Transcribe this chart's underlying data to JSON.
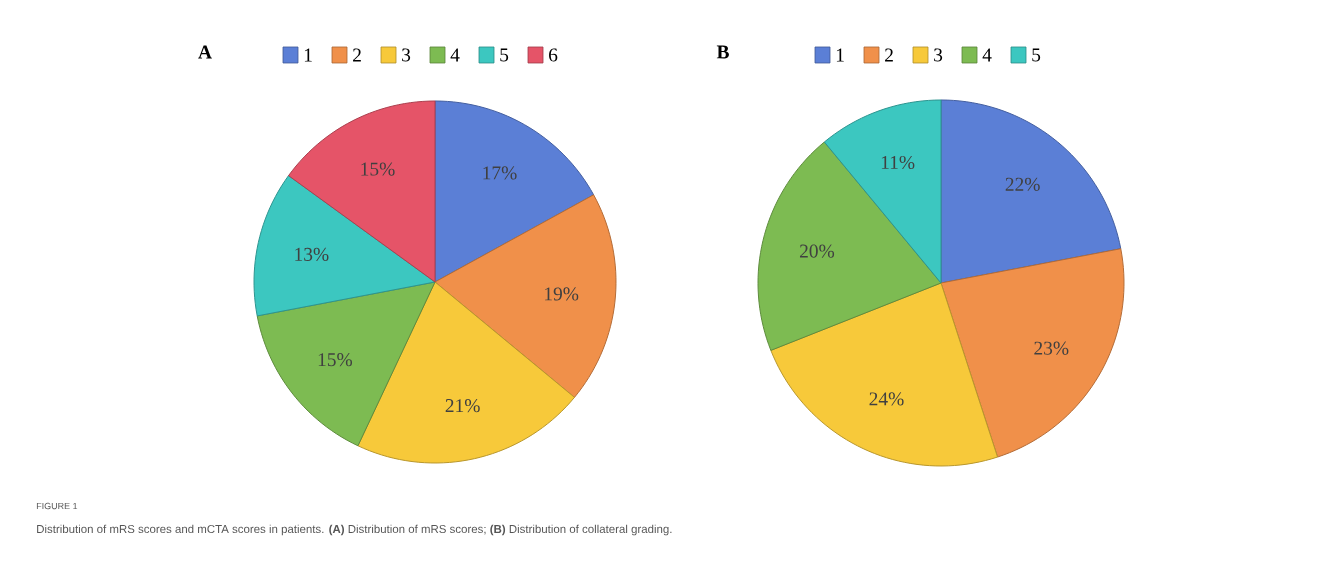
{
  "chart_data": [
    {
      "type": "pie",
      "title": "A",
      "categories": [
        "1",
        "2",
        "3",
        "4",
        "5",
        "6"
      ],
      "values": [
        17,
        19,
        21,
        15,
        13,
        15
      ],
      "value_labels": [
        "17%",
        "19%",
        "21%",
        "15%",
        "13%",
        "15%"
      ],
      "colors": [
        "#5b7fd6",
        "#f0904a",
        "#f7c93a",
        "#7dbb52",
        "#3cc7c0",
        "#e55468"
      ],
      "legend": "top",
      "annotations": [
        "FIGURE 1",
        "Distribution of mRS scores and mCTA scores in patients. **(A)** Distribution of mRS scores; **(B)** Distribution of collateral grading."
      ]
    },
    {
      "type": "pie",
      "title": "B",
      "categories": [
        "1",
        "2",
        "3",
        "4",
        "5"
      ],
      "values": [
        22,
        23,
        24,
        20,
        11
      ],
      "value_labels": [
        "22%",
        "23%",
        "24%",
        "20%",
        "11%"
      ],
      "colors": [
        "#5b7fd6",
        "#f0904a",
        "#f7c93a",
        "#7dbb52",
        "#3cc7c0"
      ],
      "legend": "top"
    }
  ]
}
